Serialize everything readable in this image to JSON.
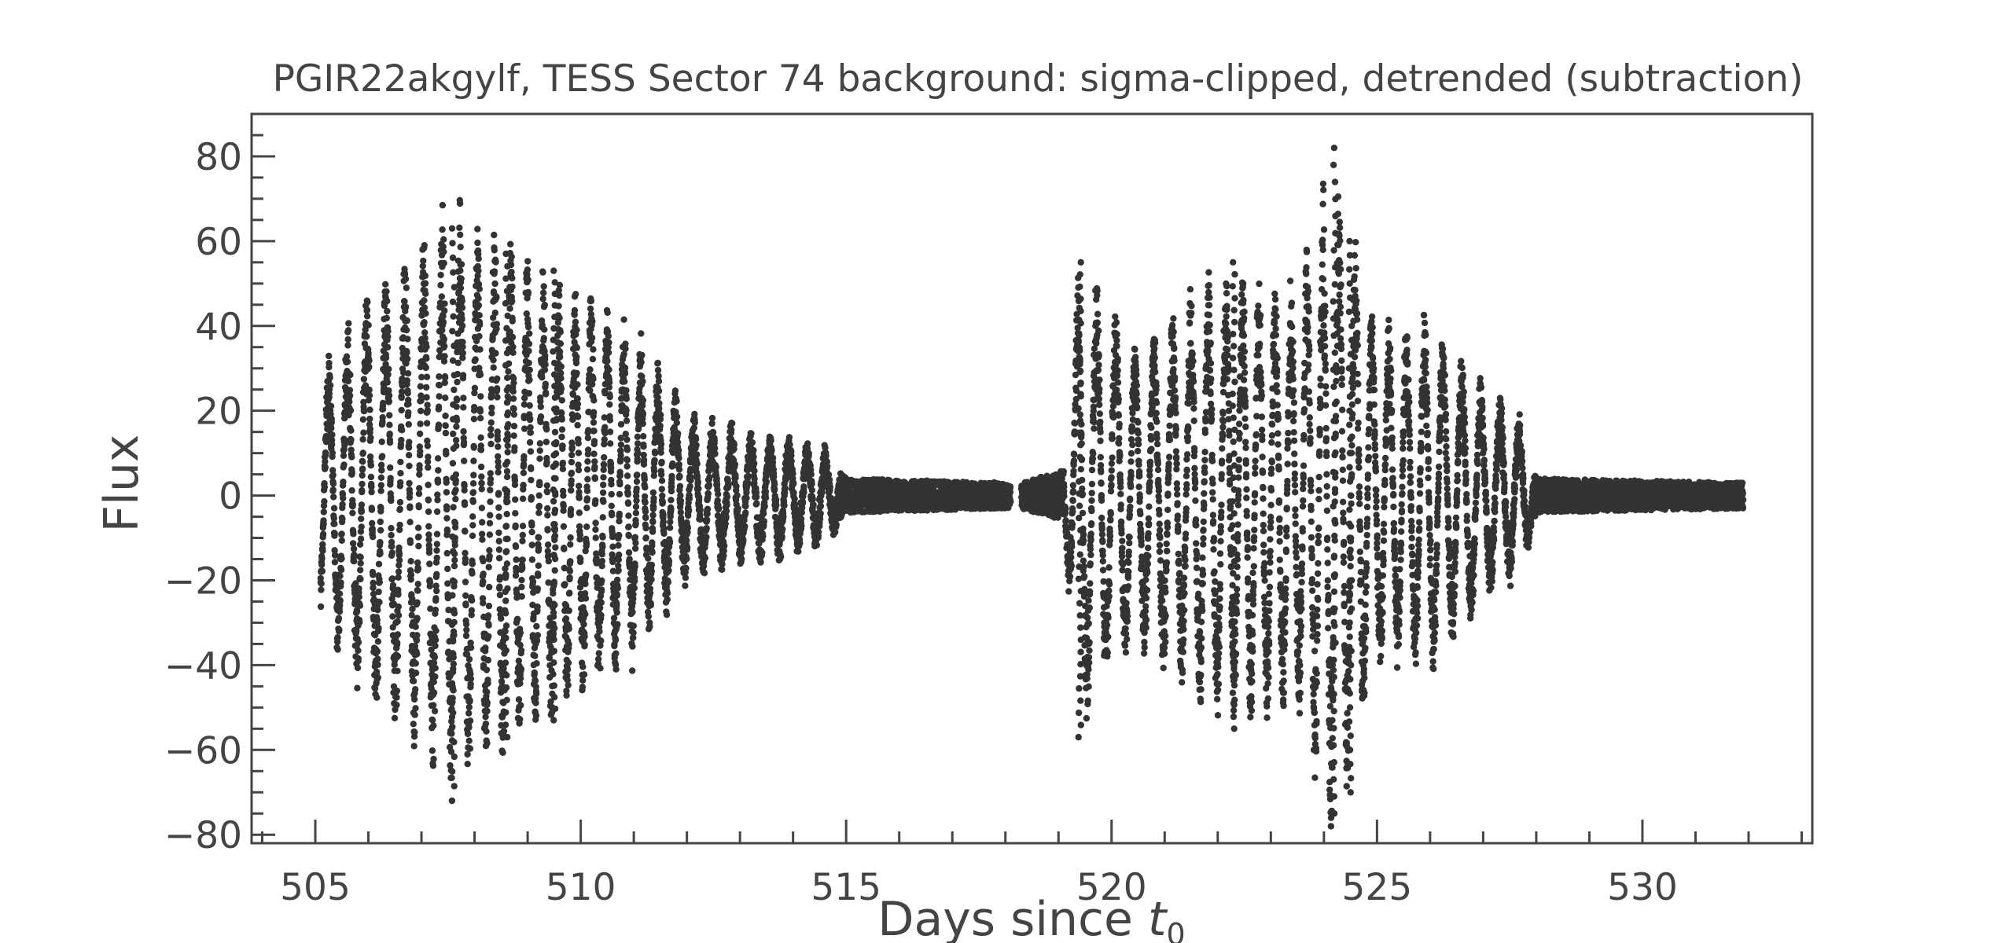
{
  "chart_data": {
    "type": "scatter",
    "title": "PGIR22akgylf, TESS Sector 74 background: sigma-clipped, detrended (subtraction)",
    "xlabel": "Days since t",
    "xlabel_subscript": "0",
    "ylabel": "Flux",
    "xlim": [
      503.8,
      533.2
    ],
    "ylim": [
      -82,
      90
    ],
    "xticks": [
      505,
      510,
      515,
      520,
      525,
      530
    ],
    "xtick_labels": [
      "505",
      "510",
      "515",
      "520",
      "525",
      "530"
    ],
    "yticks": [
      -80,
      -60,
      -40,
      -20,
      0,
      20,
      40,
      60,
      80
    ],
    "ytick_labels": [
      "−80",
      "−60",
      "−40",
      "−20",
      "0",
      "20",
      "40",
      "60",
      "80"
    ],
    "grid": false,
    "marker_color": "#333333",
    "series": [
      {
        "segments": [
          {
            "x_start": 505.1,
            "x_end": 518.1,
            "envelope": [
              [
                505.1,
                30
              ],
              [
                506.0,
                48
              ],
              [
                507.6,
                70
              ],
              [
                509.5,
                52
              ],
              [
                510.8,
                42
              ],
              [
                511.5,
                30
              ],
              [
                512.0,
                18
              ],
              [
                513.0,
                15
              ],
              [
                514.5,
                12
              ],
              [
                515.0,
                4
              ],
              [
                518.1,
                3
              ]
            ]
          },
          {
            "x_start": 518.3,
            "x_end": 531.9,
            "envelope": [
              [
                518.3,
                3
              ],
              [
                519.1,
                6
              ],
              [
                519.4,
                55
              ],
              [
                520.5,
                35
              ],
              [
                522.0,
                55
              ],
              [
                523.5,
                52
              ],
              [
                524.2,
                80
              ],
              [
                525.0,
                40
              ],
              [
                526.0,
                42
              ],
              [
                527.0,
                25
              ],
              [
                527.7,
                18
              ],
              [
                528.0,
                4
              ],
              [
                531.9,
                3
              ]
            ]
          }
        ],
        "highlights": [
          {
            "x": 507.6,
            "ymin": -72,
            "ymax": 63
          },
          {
            "x": 508.6,
            "ymin": -57,
            "ymax": 57
          },
          {
            "x": 509.5,
            "ymin": -53,
            "ymax": 53
          },
          {
            "x": 519.4,
            "ymin": -57,
            "ymax": 55
          },
          {
            "x": 522.3,
            "ymin": -55,
            "ymax": 55
          },
          {
            "x": 524.2,
            "ymin": -75,
            "ymax": 82
          },
          {
            "x": 524.5,
            "ymin": -70,
            "ymax": 60
          }
        ]
      }
    ]
  }
}
